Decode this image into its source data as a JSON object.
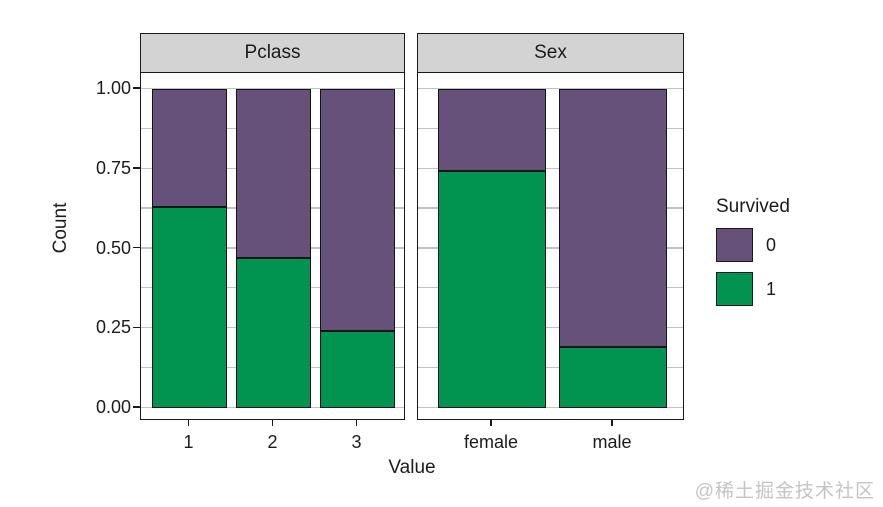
{
  "chart_data": {
    "type": "bar",
    "stacking": "fill-proportion",
    "faceted": true,
    "title": "",
    "xlabel": "Value",
    "ylabel": "Count",
    "ylim": [
      0,
      1
    ],
    "grid": "on",
    "ytick_labels": [
      "0.00",
      "0.25",
      "0.50",
      "0.75",
      "1.00"
    ],
    "ytick_values": [
      0,
      0.25,
      0.5,
      0.75,
      1
    ],
    "minor_gridlines": [
      0.125,
      0.375,
      0.625,
      0.875
    ],
    "legend": {
      "title": "Survived",
      "position": "right",
      "entries": [
        {
          "label": "0",
          "color": "#65517A"
        },
        {
          "label": "1",
          "color": "#009450"
        }
      ]
    },
    "stack_order_bottom_to_top": [
      "1",
      "0"
    ],
    "facets": [
      {
        "label": "Pclass",
        "categories": [
          "1",
          "2",
          "3"
        ],
        "series": [
          {
            "name": "0",
            "values": [
              0.37,
              0.53,
              0.76
            ]
          },
          {
            "name": "1",
            "values": [
              0.63,
              0.47,
              0.24
            ]
          }
        ]
      },
      {
        "label": "Sex",
        "categories": [
          "female",
          "male"
        ],
        "series": [
          {
            "name": "0",
            "values": [
              0.26,
              0.81
            ]
          },
          {
            "name": "1",
            "values": [
              0.74,
              0.19
            ]
          }
        ]
      }
    ]
  },
  "watermark": {
    "text": "@稀土掘金技术社区"
  }
}
